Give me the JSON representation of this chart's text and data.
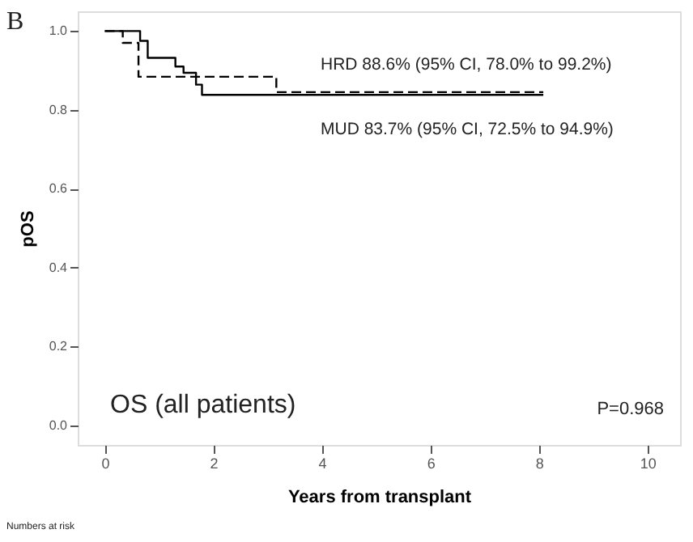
{
  "chart_data": {
    "type": "step",
    "xlabel": "Years from transplant",
    "ylabel": "pOS",
    "xlim": [
      -0.5,
      10.6
    ],
    "xticks": [
      0,
      2,
      4,
      6,
      8,
      10
    ],
    "ylim": [
      -0.05,
      1.05
    ],
    "yticks": [
      {
        "value": 0,
        "label": "0.0"
      },
      0.2,
      0.4,
      0.6,
      0.8,
      {
        "value": 1,
        "label": "1.0"
      }
    ],
    "grid": false,
    "marker": "none",
    "series": [
      {
        "color": "#000000",
        "line_style": "solid",
        "x": [
          0,
          0.65,
          0.79,
          1.3,
          1.45,
          1.68,
          1.79,
          8.08
        ],
        "values": [
          1.0,
          0.975,
          0.932,
          0.91,
          0.894,
          0.864,
          0.838,
          0.838
        ]
      },
      {
        "color": "#000000",
        "line_style": "dashed",
        "x": [
          0,
          0.33,
          0.62,
          3.16,
          8.08
        ],
        "values": [
          1.0,
          0.97,
          0.884,
          0.845,
          0.845
        ]
      }
    ],
    "annotations": [
      "B",
      "HRD 88.6% (95% CI, 78.0% to 99.2%)",
      "MUD 83.7% (95% CI, 72.5% to 94.9%)",
      "OS (all patients)",
      "P=0.968",
      "Numbers at risk"
    ]
  }
}
